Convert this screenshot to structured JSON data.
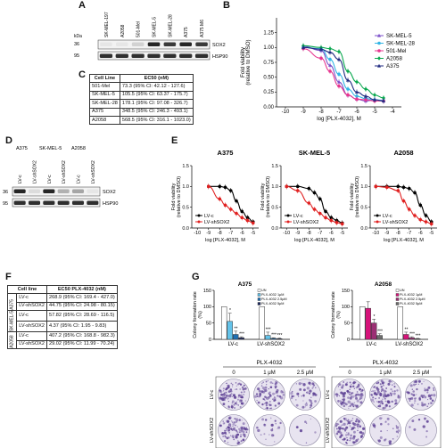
{
  "panels": {
    "A": "A",
    "B": "B",
    "C": "C",
    "D": "D",
    "E": "E",
    "F": "F",
    "G": "G"
  },
  "blotA": {
    "kda": "kDa",
    "lanes": [
      "SK-MEL-197",
      "A2058",
      "501-Mel",
      "SK-MEL-5",
      "SK-MEL-28",
      "A375",
      "A375 M6"
    ],
    "markers": [
      "36",
      "95"
    ],
    "bands": [
      "SOX2",
      "HSP90"
    ],
    "sox2_levels": [
      0.05,
      0.05,
      0.15,
      0.95,
      0.85,
      0.95,
      0.85
    ]
  },
  "blotD": {
    "groups": [
      "A375",
      "SK-MEL-5",
      "A2058"
    ],
    "lanes": [
      "LV-c",
      "LV-shSOX2",
      "LV-c",
      "LV-shSOX2",
      "LV-c",
      "LV-shSOX2"
    ],
    "markers": [
      "36",
      "95"
    ],
    "bands": [
      "SOX2",
      "HSP90"
    ],
    "sox2_levels": [
      0.95,
      0.1,
      0.95,
      0.3,
      0.35,
      0.05
    ]
  },
  "tableC": {
    "headers": [
      "Cell Line",
      "EC50 (nM)"
    ],
    "rows": [
      [
        "501-Mel",
        "73.3 (95% CI: 42.12 - 127.6)"
      ],
      [
        "SK-MEL-5",
        "105.5 (95% CI: 63.37 - 175.7)"
      ],
      [
        "SK-MEL-28",
        "178.1 (95% CI: 97.08 - 326.7)"
      ],
      [
        "A375",
        "348.5 (95% CI: 246.3 - 493.1)"
      ],
      [
        "A2058",
        "568.5 (95% CI: 316.1 - 1023.0)"
      ]
    ]
  },
  "tableF": {
    "headers": [
      "Cell line",
      "EC50 PLX-4032 (nM)"
    ],
    "groups": [
      "A375",
      "SK-MEL-5",
      "A2058"
    ],
    "rows": [
      [
        "LV-c",
        "268.9 (95% CI: 169.4 - 427.0)"
      ],
      [
        "LV-shSOX2",
        "44.75 (95% CI: 24.98 - 80.15)"
      ],
      [
        "LV-c",
        "57.82 (95% CI: 28.69 - 116.5)"
      ],
      [
        "LV-shSOX2",
        "4.37 (95% CI: 1.95 - 9.83)"
      ],
      [
        "LV-c",
        "407.2 (95% CI: 168.8 - 982.3)"
      ],
      [
        "LV-shSOX2",
        "29.02 (95% CI: 11.99 - 70.24)"
      ]
    ]
  },
  "chart_data": [
    {
      "panel": "B",
      "type": "line",
      "xlabel": "log [PLX-4032], M",
      "ylabel": "Fold viability (relative to DMSO)",
      "xlim": [
        -10.5,
        -3.5
      ],
      "ylim": [
        0,
        1.5
      ],
      "xticks": [
        -10,
        -9,
        -8,
        -7,
        -6,
        -5,
        -4
      ],
      "yticks": [
        0.0,
        0.25,
        0.5,
        0.75,
        1.0,
        1.25
      ],
      "ytick_labels": [
        "0.00",
        "0.25",
        "0.50",
        "0.75",
        "1.00",
        "1.25"
      ],
      "legend_position": "right",
      "series": [
        {
          "name": "SK-MEL-5",
          "color": "#7b4fc9",
          "marker": "triangle",
          "x": [
            -9,
            -8,
            -7.5,
            -7,
            -6.5,
            -6,
            -5.5,
            -5,
            -4.5
          ],
          "y": [
            1.02,
            0.95,
            0.7,
            0.42,
            0.2,
            0.13,
            0.1,
            0.12,
            0.1
          ]
        },
        {
          "name": "SK-MEL-28",
          "color": "#33b5e5",
          "marker": "circle",
          "x": [
            -9,
            -8,
            -7.5,
            -7,
            -6.5,
            -6,
            -5.5,
            -5,
            -4.5
          ],
          "y": [
            1.0,
            0.98,
            0.8,
            0.55,
            0.3,
            0.18,
            0.14,
            0.12,
            0.11
          ]
        },
        {
          "name": "501-Mel",
          "color": "#e7368f",
          "marker": "circle",
          "x": [
            -9,
            -8,
            -7.5,
            -7,
            -6.5,
            -6,
            -5.5,
            -5,
            -4.5
          ],
          "y": [
            0.98,
            0.82,
            0.6,
            0.35,
            0.2,
            0.13,
            0.12,
            0.1,
            0.1
          ]
        },
        {
          "name": "A2058",
          "color": "#0aa84f",
          "marker": "diamond",
          "x": [
            -9,
            -8,
            -7.5,
            -7,
            -6.5,
            -6,
            -5.5,
            -5,
            -4.5
          ],
          "y": [
            1.03,
            1.0,
            0.98,
            0.93,
            0.6,
            0.42,
            0.3,
            0.2,
            0.15
          ]
        },
        {
          "name": "A375",
          "color": "#1f2a80",
          "marker": "triangle",
          "x": [
            -9,
            -8,
            -7.5,
            -7,
            -6.5,
            -6,
            -5.5,
            -5,
            -4.5
          ],
          "y": [
            1.0,
            0.97,
            0.92,
            0.8,
            0.45,
            0.25,
            0.18,
            0.12,
            0.1
          ]
        }
      ]
    },
    {
      "panel": "E",
      "type": "line",
      "subplots": [
        {
          "title": "A375",
          "series": [
            {
              "name": "LV-c",
              "color": "#000000",
              "x": [
                -9,
                -8,
                -7.5,
                -7,
                -6.5,
                -6,
                -5.5,
                -5
              ],
              "y": [
                1.0,
                1.0,
                0.98,
                0.9,
                0.65,
                0.4,
                0.25,
                0.15
              ]
            },
            {
              "name": "LV-shSOX2",
              "color": "#e02020",
              "x": [
                -9,
                -8,
                -7.5,
                -7,
                -6.5,
                -6,
                -5.5,
                -5
              ],
              "y": [
                1.0,
                0.7,
                0.55,
                0.45,
                0.35,
                0.25,
                0.18,
                0.12
              ]
            }
          ]
        },
        {
          "title": "SK-MEL-5",
          "series": [
            {
              "name": "LV-c",
              "color": "#000000",
              "x": [
                -10,
                -9,
                -8,
                -7.5,
                -7,
                -6.5,
                -6,
                -5.5,
                -5
              ],
              "y": [
                1.0,
                1.0,
                0.95,
                0.85,
                0.7,
                0.4,
                0.25,
                0.18,
                0.12
              ]
            },
            {
              "name": "LV-shSOX2",
              "color": "#e02020",
              "x": [
                -10,
                -9,
                -8,
                -7.5,
                -7,
                -6.5,
                -6,
                -5.5,
                -5
              ],
              "y": [
                1.0,
                0.9,
                0.6,
                0.45,
                0.35,
                0.25,
                0.18,
                0.13,
                0.1
              ]
            }
          ]
        },
        {
          "title": "A2058",
          "series": [
            {
              "name": "LV-c",
              "color": "#000000",
              "x": [
                -10,
                -9,
                -8,
                -7.5,
                -7,
                -6.5,
                -6,
                -5.5,
                -5
              ],
              "y": [
                1.0,
                1.0,
                1.0,
                0.98,
                0.95,
                0.85,
                0.55,
                0.3,
                0.15
              ]
            },
            {
              "name": "LV-shSOX2",
              "color": "#e02020",
              "x": [
                -10,
                -9,
                -8,
                -7.5,
                -7,
                -6.5,
                -6,
                -5.5,
                -5
              ],
              "y": [
                1.0,
                0.98,
                0.9,
                0.65,
                0.45,
                0.3,
                0.2,
                0.15,
                0.1
              ]
            }
          ]
        }
      ],
      "xlabel": "log [PLX-4032], M",
      "ylabel": "Fold viability (relative to DMSO)",
      "xlim": [
        -10.5,
        -4.5
      ],
      "ylim": [
        0,
        1.5
      ],
      "xticks": [
        -10,
        -9,
        -8,
        -7,
        -6,
        -5
      ],
      "yticks": [
        0.0,
        0.5,
        1.0,
        1.5
      ],
      "ytick_labels": [
        "0.0",
        "0.5",
        "1.0",
        "1.5"
      ],
      "legend_position": "bottom-left"
    },
    {
      "panel": "G",
      "type": "bar",
      "ylabel": "Colony formation rate (%) (Relative to DMSO)",
      "ylim": [
        0,
        150
      ],
      "yticks": [
        0,
        50,
        100,
        150
      ],
      "categories": [
        "LV-c",
        "LV-shSOX2"
      ],
      "subplots": [
        {
          "title": "A375",
          "legend": [
            "UN",
            "PLX-4032 1μM",
            "PLX-4032 2.5μM",
            "PLX-4032 5μM"
          ],
          "colors": [
            "#ffffff",
            "#63c3ea",
            "#1f6fb2",
            "#1f2a60"
          ],
          "values": [
            [
              100,
              55,
              15,
              5
            ],
            [
              100,
              12,
              3,
              2
            ]
          ],
          "errors": [
            [
              0,
              25,
              10,
              3
            ],
            [
              0,
              10,
              2,
              2
            ]
          ],
          "sig": [
            [
              "",
              "*",
              "**",
              "***"
            ],
            [
              "",
              "***",
              "***",
              "***"
            ]
          ]
        },
        {
          "title": "A2058",
          "legend": [
            "UN",
            "PLX-4032 1μM",
            "PLX-4032 2.5μM",
            "PLX-4032 5μM"
          ],
          "colors": [
            "#ffffff",
            "#d6137a",
            "#9c2f74",
            "#6d6d6d"
          ],
          "values": [
            [
              100,
              95,
              50,
              12
            ],
            [
              100,
              15,
              5,
              2
            ]
          ],
          "errors": [
            [
              0,
              20,
              12,
              5
            ],
            [
              0,
              7,
              3,
              1
            ]
          ],
          "sig": [
            [
              "",
              "",
              "*",
              "***"
            ],
            [
              "",
              "**",
              "***",
              "***"
            ]
          ]
        }
      ]
    }
  ],
  "colonyPlates": {
    "header": "PLX-4032",
    "doses": [
      "0",
      "1 μM",
      "2.5 μM"
    ],
    "rows": [
      "LV-c",
      "LV-shSOX2"
    ],
    "density_A375": [
      [
        0.95,
        0.75,
        0.45
      ],
      [
        0.9,
        0.2,
        0.06
      ]
    ],
    "density_A2058": [
      [
        0.9,
        0.85,
        0.55
      ],
      [
        0.85,
        0.25,
        0.08
      ]
    ]
  },
  "colors": {
    "plate_stain": "#5c3f93",
    "plate_bg": "#e8e4f0",
    "blot_band": "#1a1a1a",
    "blot_bg": "#f2f2f2"
  }
}
